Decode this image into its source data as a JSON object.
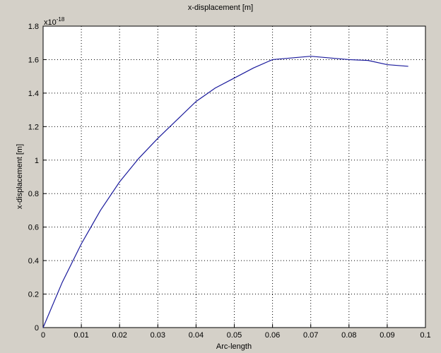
{
  "chart_data": {
    "type": "line",
    "title": "x-displacement [m]",
    "x_label": "Arc-length",
    "y_label": "x-displacement [m]",
    "y_multiplier": {
      "base": "x10",
      "exponent": "-18"
    },
    "x": [
      0,
      0.005,
      0.01,
      0.015,
      0.02,
      0.025,
      0.03,
      0.035,
      0.04,
      0.045,
      0.05,
      0.055,
      0.06,
      0.065,
      0.07,
      0.075,
      0.08,
      0.085,
      0.09,
      0.0955
    ],
    "series": [
      {
        "name": "x-displacement",
        "color": "#1a1a9c",
        "values": [
          0,
          0.27,
          0.5,
          0.7,
          0.87,
          1.01,
          1.13,
          1.24,
          1.35,
          1.43,
          1.49,
          1.55,
          1.6,
          1.61,
          1.62,
          1.61,
          1.6,
          1.595,
          1.57,
          1.56
        ]
      }
    ],
    "xlim": [
      0,
      0.1
    ],
    "ylim": [
      0,
      1.8
    ],
    "xticks": [
      0,
      0.01,
      0.02,
      0.03,
      0.04,
      0.05,
      0.06,
      0.07,
      0.08,
      0.09,
      0.1
    ],
    "yticks": [
      0,
      0.2,
      0.4,
      0.6,
      0.8,
      1,
      1.2,
      1.4,
      1.6,
      1.8
    ],
    "grid": true
  }
}
